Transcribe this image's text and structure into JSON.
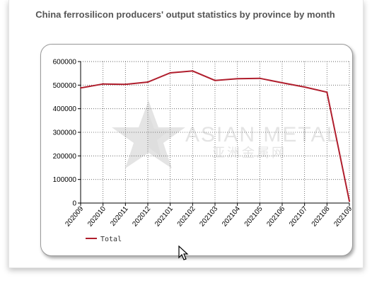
{
  "chart_data": {
    "type": "line",
    "title": "China ferrosilicon producers' output statistics by province by month",
    "categories": [
      "202009",
      "202010",
      "202011",
      "202012",
      "202101",
      "202102",
      "202103",
      "202104",
      "202105",
      "202106",
      "202107",
      "202108",
      "202109"
    ],
    "series": [
      {
        "name": "Total",
        "color": "#b01e2d",
        "values": [
          488000,
          505000,
          503000,
          513000,
          552000,
          560000,
          520000,
          527000,
          529000,
          510000,
          492000,
          470000,
          8000
        ]
      }
    ],
    "yticks": [
      0,
      100000,
      200000,
      300000,
      400000,
      500000,
      600000
    ],
    "ylim": [
      0,
      600000
    ],
    "grid": true,
    "legend": "bottom-left"
  },
  "watermark": {
    "en": "ASIAN METAL",
    "cn": "亚洲金属网",
    "icon": "star-logo-icon"
  },
  "cursor": {
    "icon": "mouse-pointer-icon"
  }
}
